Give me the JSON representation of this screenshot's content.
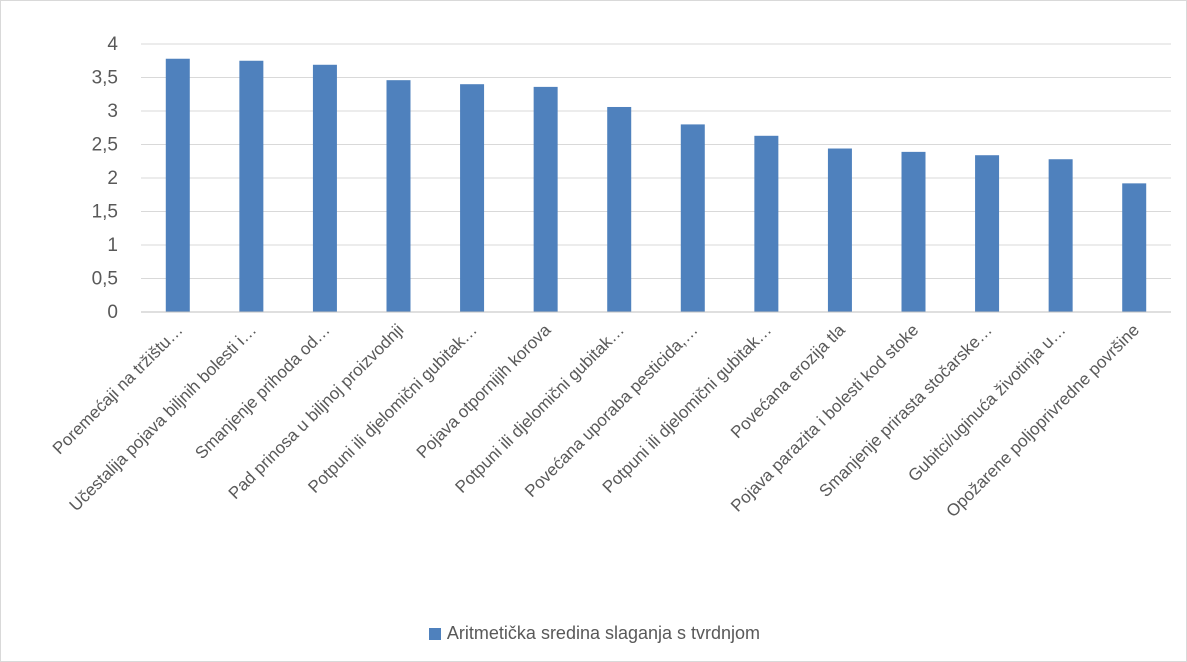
{
  "chart_data": {
    "type": "bar",
    "title": "",
    "xlabel": "",
    "ylabel": "",
    "ylim": [
      0,
      4
    ],
    "yticks": [
      "0",
      "0,5",
      "1",
      "1,5",
      "2",
      "2,5",
      "3",
      "3,5",
      "4"
    ],
    "grid": true,
    "legend_position": "bottom",
    "bar_color": "#4f81bd",
    "categories": [
      "Poremećaji na tržištu…",
      "Učestalija pojava biljnih bolesti i…",
      "Smanjenje prihoda od…",
      "Pad prinosa u biljnoj proizvodnji",
      "Potpuni ili djelomični gubitak…",
      "Pojava otpornijih korova",
      "Potpuni ili djelomični gubitak…",
      "Povećana uporaba pesticida,…",
      "Potpuni ili djelomični gubitak…",
      "Povećana erozija tla",
      "Pojava parazita i bolesti kod stoke",
      "Smanjenje prirasta stočarske…",
      "Gubitci/uginuća životinja u…",
      "Opožarene poljoprivredne površine"
    ],
    "series": [
      {
        "name": "Aritmetička sredina slaganja s tvrdnjom",
        "values": [
          3.78,
          3.75,
          3.69,
          3.46,
          3.4,
          3.36,
          3.06,
          2.8,
          2.63,
          2.44,
          2.39,
          2.34,
          2.28,
          1.92
        ]
      }
    ]
  }
}
